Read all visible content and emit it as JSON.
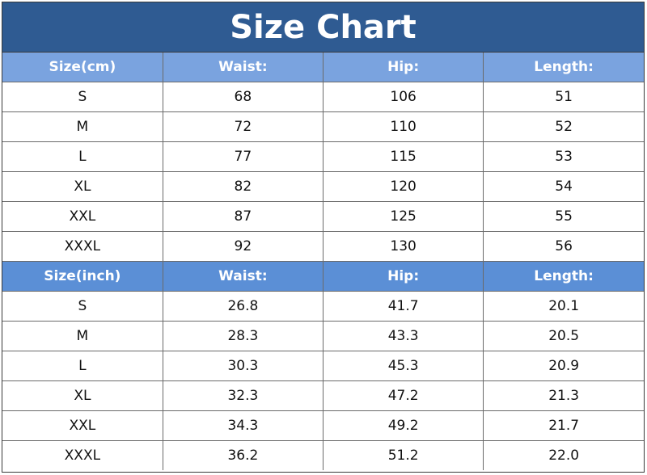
{
  "title": "Size Chart",
  "cm_table": {
    "headers": [
      "Size(cm)",
      "Waist:",
      "Hip:",
      "Length:"
    ],
    "rows": [
      [
        "S",
        "68",
        "106",
        "51"
      ],
      [
        "M",
        "72",
        "110",
        "52"
      ],
      [
        "L",
        "77",
        "115",
        "53"
      ],
      [
        "XL",
        "82",
        "120",
        "54"
      ],
      [
        "XXL",
        "87",
        "125",
        "55"
      ],
      [
        "XXXL",
        "92",
        "130",
        "56"
      ]
    ]
  },
  "inch_table": {
    "headers": [
      "Size(inch)",
      "Waist:",
      "Hip:",
      "Length:"
    ],
    "rows": [
      [
        "S",
        "26.8",
        "41.7",
        "20.1"
      ],
      [
        "M",
        "28.3",
        "43.3",
        "20.5"
      ],
      [
        "L",
        "30.3",
        "45.3",
        "20.9"
      ],
      [
        "XL",
        "32.3",
        "47.2",
        "21.3"
      ],
      [
        "XXL",
        "34.3",
        "49.2",
        "21.7"
      ],
      [
        "XXXL",
        "36.2",
        "51.2",
        "22.0"
      ]
    ]
  },
  "colors": {
    "title_bg": "#2f5b92",
    "cm_header_bg": "#7aa3df",
    "inch_header_bg": "#5b8fd6"
  }
}
